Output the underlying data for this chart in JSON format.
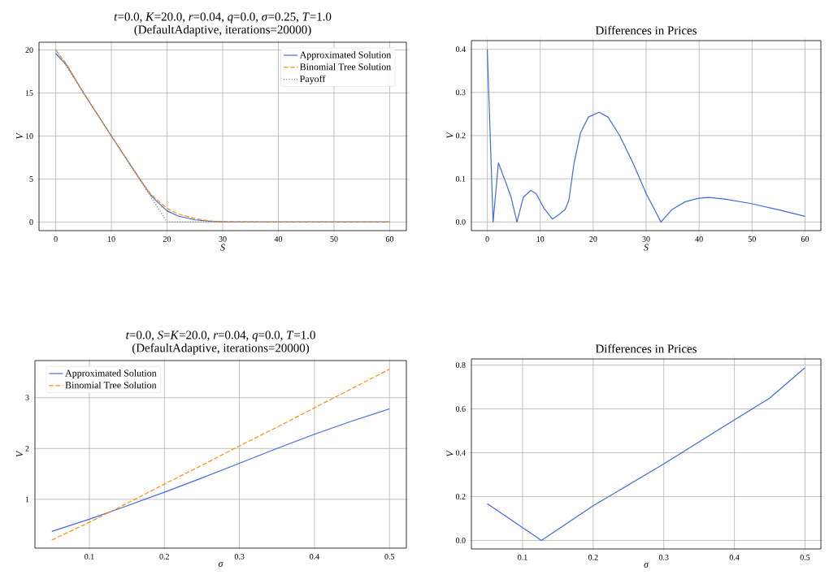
{
  "chart_data": [
    {
      "type": "line",
      "title": "*t*=0.0, *K*=20.0, *r*=0.04, *q*=0.0, *σ*=0.25, *T*=1.0",
      "subtitle": "(DefaultAdaptive, iterations=20000)",
      "xlabel": "S",
      "ylabel": "V",
      "xlim": [
        -3,
        63
      ],
      "ylim": [
        -1,
        20.9
      ],
      "xticks": [
        0,
        10,
        20,
        30,
        40,
        50,
        60
      ],
      "yticks": [
        0,
        5,
        10,
        15,
        20
      ],
      "grid": true,
      "legend": "top right",
      "series": [
        {
          "name": "Approximated Solution",
          "color": "#4169e1",
          "line_style": "solid",
          "x": [
            0,
            2,
            5,
            10,
            15,
            17,
            18,
            20,
            22,
            25,
            28,
            30,
            40,
            60
          ],
          "values": [
            19.6,
            18.2,
            15,
            10,
            5.1,
            3.2,
            2.5,
            1.3,
            0.7,
            0.25,
            0.08,
            0.03,
            0,
            0
          ]
        },
        {
          "name": "Binomial Tree Solution",
          "color": "#ff8c00",
          "line_style": "dashed",
          "x": [
            0,
            2,
            5,
            10,
            15,
            17,
            18,
            20,
            22,
            25,
            28,
            30,
            40,
            60
          ],
          "values": [
            20,
            18.3,
            15,
            10,
            5.1,
            3.3,
            2.7,
            1.6,
            0.95,
            0.4,
            0.12,
            0.05,
            0,
            0
          ]
        },
        {
          "name": "Payoff",
          "color": "#808080",
          "line_style": "dotted",
          "x": [
            0,
            20,
            60
          ],
          "values": [
            20,
            0,
            0
          ]
        }
      ]
    },
    {
      "type": "line",
      "title": "Differences in Prices",
      "xlabel": "S",
      "ylabel": "V",
      "xlim": [
        -3,
        63
      ],
      "ylim": [
        -0.02,
        0.42
      ],
      "xticks": [
        0,
        10,
        20,
        30,
        40,
        50,
        60
      ],
      "yticks": [
        {
          "value": 0,
          "label": "0.0"
        },
        0.1,
        0.2,
        0.3,
        0.4
      ],
      "grid": true,
      "series": [
        {
          "color": "#4169e1",
          "line_style": "solid",
          "x": [
            0,
            1.1,
            2.1,
            3.6,
            4.5,
            5.6,
            6.8,
            8.2,
            9.2,
            10.7,
            12.3,
            13.4,
            14.7,
            15.4,
            16.4,
            17.6,
            19.1,
            21.1,
            22.8,
            25,
            27.5,
            30,
            32.8,
            34.9,
            37.4,
            39.9,
            41.8,
            44.8,
            49.7,
            54.7,
            60
          ],
          "values": [
            0.4,
            0.0,
            0.137,
            0.088,
            0.057,
            0.0,
            0.057,
            0.073,
            0.066,
            0.032,
            0.007,
            0.016,
            0.029,
            0.05,
            0.137,
            0.206,
            0.243,
            0.254,
            0.243,
            0.2,
            0.137,
            0.066,
            0.0,
            0.029,
            0.047,
            0.055,
            0.057,
            0.053,
            0.043,
            0.029,
            0.013
          ]
        }
      ]
    },
    {
      "type": "line",
      "title": "*t*=0.0, *S*=*K*=20.0, *r*=0.04, *q*=0.0, *T*=1.0",
      "subtitle": "(DefaultAdaptive, iterations=20000)",
      "xlabel": "σ",
      "ylabel": "V",
      "xlim": [
        0.0275,
        0.5225
      ],
      "ylim": [
        0.04,
        3.73
      ],
      "xticks": [
        0.1,
        0.2,
        0.3,
        0.4,
        0.5
      ],
      "yticks": [
        1,
        2,
        3
      ],
      "grid": true,
      "legend": "top left",
      "series": [
        {
          "name": "Approximated Solution",
          "color": "#4169e1",
          "line_style": "solid",
          "x": [
            0.05,
            0.1,
            0.15,
            0.2,
            0.25,
            0.3,
            0.35,
            0.4,
            0.45,
            0.5
          ],
          "values": [
            0.37,
            0.61,
            0.87,
            1.14,
            1.42,
            1.71,
            2.0,
            2.28,
            2.54,
            2.78
          ]
        },
        {
          "name": "Binomial Tree Solution",
          "color": "#ff8c00",
          "line_style": "dashed",
          "x": [
            0.05,
            0.1,
            0.15,
            0.2,
            0.25,
            0.3,
            0.35,
            0.4,
            0.45,
            0.5
          ],
          "values": [
            0.2,
            0.55,
            0.92,
            1.3,
            1.67,
            2.05,
            2.42,
            2.8,
            3.18,
            3.56
          ]
        }
      ]
    },
    {
      "type": "line",
      "title": "Differences in Prices",
      "xlabel": "σ",
      "ylabel": "V",
      "xlim": [
        0.0275,
        0.5225
      ],
      "ylim": [
        -0.039,
        0.828
      ],
      "xticks": [
        0.1,
        0.2,
        0.3,
        0.4,
        0.5
      ],
      "yticks": [
        {
          "value": 0,
          "label": "0.0"
        },
        0.2,
        0.4,
        0.6,
        0.8
      ],
      "grid": true,
      "series": [
        {
          "color": "#4169e1",
          "line_style": "solid",
          "x": [
            0.05,
            0.1267,
            0.2,
            0.3,
            0.4,
            0.45,
            0.5
          ],
          "values": [
            0.168,
            0.0,
            0.158,
            0.349,
            0.55,
            0.649,
            0.788
          ]
        }
      ]
    }
  ]
}
